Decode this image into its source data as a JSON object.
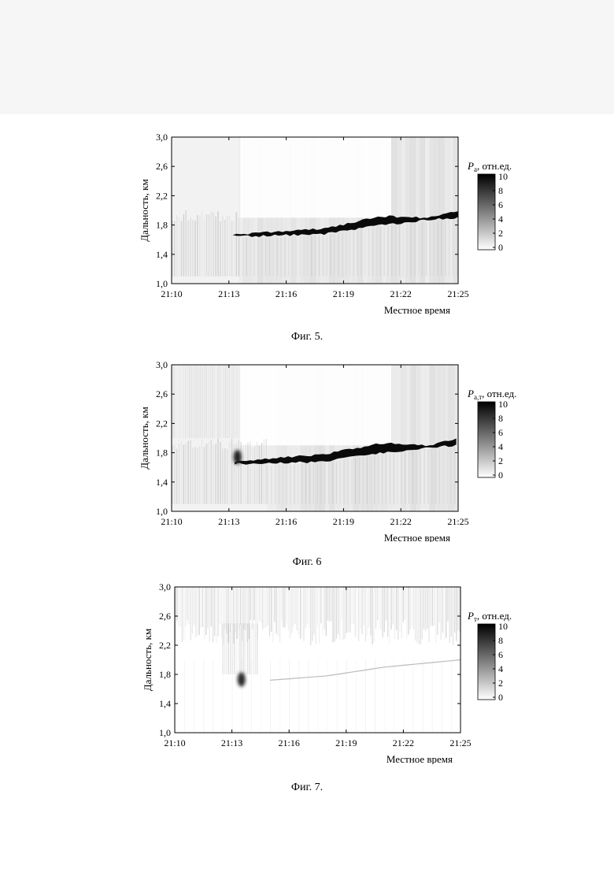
{
  "chart_data": [
    {
      "type": "heatmap",
      "figure_caption": "Фиг. 5.",
      "xlabel": "Местное время",
      "ylabel": "Дальность, км",
      "x_ticks": [
        "21:10",
        "21:13",
        "21:16",
        "21:19",
        "21:22",
        "21:25"
      ],
      "y_ticks": [
        "1,0",
        "1,4",
        "1,8",
        "2,2",
        "2,6",
        "3,0"
      ],
      "xlim": [
        "21:10",
        "21:25"
      ],
      "ylim": [
        1.0,
        3.0
      ],
      "colorbar": {
        "label_symbol": "P",
        "label_sub": "а",
        "label_rest": ", отн.ед.",
        "ticks": [
          "0",
          "2",
          "4",
          "6",
          "8",
          "10"
        ],
        "range": [
          0,
          10
        ]
      },
      "cloud_top_km": [
        [
          13.2,
          1.67
        ],
        [
          15.0,
          1.7
        ],
        [
          18.0,
          1.75
        ],
        [
          21.0,
          1.92
        ],
        [
          23.5,
          1.9
        ],
        [
          25.0,
          2.0
        ]
      ],
      "cloud_bottom_km": [
        [
          13.2,
          1.65
        ],
        [
          15.0,
          1.65
        ],
        [
          18.0,
          1.68
        ],
        [
          21.0,
          1.8
        ],
        [
          23.5,
          1.87
        ],
        [
          25.0,
          1.9
        ]
      ],
      "background_range_km": [
        1.1,
        2.0
      ],
      "background_end_min": 13.5,
      "aerosol_plume": false,
      "upper_noise": false
    },
    {
      "type": "heatmap",
      "figure_caption": "Фиг. 6",
      "xlabel": "Местное время",
      "ylabel": "Дальность, км",
      "x_ticks": [
        "21:10",
        "21:13",
        "21:16",
        "21:19",
        "21:22",
        "21:25"
      ],
      "y_ticks": [
        "1,0",
        "1,4",
        "1,8",
        "2,2",
        "2,6",
        "3,0"
      ],
      "xlim": [
        "21:10",
        "21:25"
      ],
      "ylim": [
        1.0,
        3.0
      ],
      "colorbar": {
        "label_symbol": "P",
        "label_sub": "а,т",
        "label_rest": ", отн.ед.",
        "ticks": [
          "0",
          "2",
          "4",
          "6",
          "8",
          "10"
        ],
        "range": [
          0,
          10
        ]
      },
      "cloud_top_km": [
        [
          13.3,
          1.68
        ],
        [
          15.0,
          1.72
        ],
        [
          18.0,
          1.78
        ],
        [
          21.0,
          1.93
        ],
        [
          23.5,
          1.9
        ],
        [
          25.0,
          2.0
        ]
      ],
      "cloud_bottom_km": [
        [
          13.3,
          1.65
        ],
        [
          15.0,
          1.65
        ],
        [
          18.0,
          1.68
        ],
        [
          21.0,
          1.8
        ],
        [
          23.5,
          1.87
        ],
        [
          25.0,
          1.9
        ]
      ],
      "background_range_km": [
        1.1,
        2.0
      ],
      "background_end_min": 15.0,
      "aerosol_plume": true,
      "upper_noise": true
    },
    {
      "type": "heatmap",
      "figure_caption": "Фиг. 7.",
      "xlabel": "Местное время",
      "ylabel": "Дальность, км",
      "x_ticks": [
        "21:10",
        "21:13",
        "21:16",
        "21:19",
        "21:22",
        "21:25"
      ],
      "y_ticks": [
        "1,0",
        "1,4",
        "1,8",
        "2,2",
        "2,6",
        "3,0"
      ],
      "xlim": [
        "21:10",
        "21:25"
      ],
      "ylim": [
        1.0,
        3.0
      ],
      "colorbar": {
        "label_symbol": "P",
        "label_sub": "т",
        "label_rest": ", отн.ед.",
        "ticks": [
          "0",
          "2",
          "4",
          "6",
          "8",
          "10"
        ],
        "range": [
          0,
          10
        ]
      },
      "faint_trace_km": [
        [
          15.0,
          1.72
        ],
        [
          18.0,
          1.78
        ],
        [
          21.0,
          1.9
        ],
        [
          25.0,
          2.0
        ]
      ],
      "noise_range_km": [
        2.2,
        3.0
      ],
      "aerosol_plume": true
    }
  ]
}
